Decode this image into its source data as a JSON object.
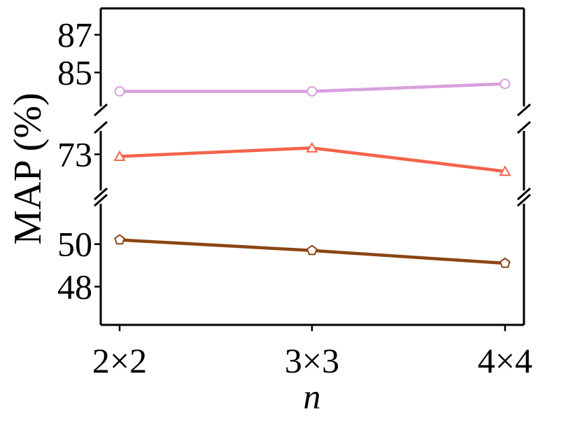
{
  "chart_data": {
    "type": "line",
    "xlabel": "n",
    "ylabel": "MAP (%)",
    "categories": [
      "2×2",
      "3×3",
      "4×4"
    ],
    "broken_y_axis": true,
    "panels": [
      {
        "ylim": [
          83.2,
          88.4
        ],
        "yticks": [
          85,
          87
        ],
        "ytick_labels": [
          "85",
          "87"
        ]
      },
      {
        "ylim": [
          71.3,
          74.1
        ],
        "yticks": [
          73
        ],
        "ytick_labels": [
          "73"
        ]
      },
      {
        "ylim": [
          46.2,
          51.9
        ],
        "yticks": [
          48,
          50
        ],
        "ytick_labels": [
          "48",
          "50"
        ]
      }
    ],
    "series": [
      {
        "panel": 0,
        "values": [
          84.0,
          84.0,
          84.4
        ],
        "color": "#d8a0df",
        "marker": "circle"
      },
      {
        "panel": 1,
        "values": [
          72.9,
          73.3,
          72.2
        ],
        "color": "#f4644a",
        "marker": "triangle"
      },
      {
        "panel": 2,
        "values": [
          50.2,
          49.7,
          49.1
        ],
        "color": "#8b4513",
        "marker": "pentagon"
      }
    ],
    "grid": false,
    "legend": "none"
  }
}
